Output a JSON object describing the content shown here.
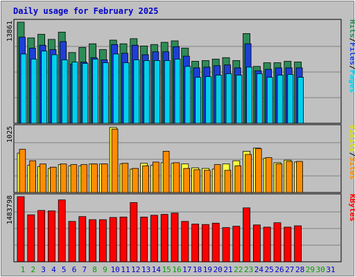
{
  "chart_data": [
    {
      "type": "bar",
      "title": "Daily usage for February 2025",
      "categories": [
        "1",
        "2",
        "3",
        "4",
        "5",
        "6",
        "7",
        "8",
        "9",
        "10",
        "11",
        "12",
        "13",
        "14",
        "15",
        "16",
        "17",
        "18",
        "19",
        "20",
        "21",
        "22",
        "23",
        "24",
        "25",
        "26",
        "27",
        "28",
        "29",
        "30",
        "31"
      ],
      "weekend_days": [
        "1",
        "2",
        "8",
        "9",
        "15",
        "16",
        "22",
        "23",
        "29",
        "30"
      ],
      "ymax_label": "13861",
      "ylim": [
        0,
        13861
      ],
      "series": [
        {
          "name": "Hits",
          "color": "#2e8b57",
          "values": [
            13861,
            11700,
            12200,
            11500,
            12500,
            9700,
            10400,
            10900,
            10100,
            11400,
            10900,
            11600,
            10600,
            10800,
            11100,
            11300,
            10300,
            8500,
            8600,
            8800,
            9000,
            8600,
            12300,
            7800,
            8300,
            8300,
            8500,
            8400,
            0,
            0,
            0
          ]
        },
        {
          "name": "Files",
          "color": "#1e3fd6",
          "values": [
            11800,
            10300,
            10700,
            10100,
            11200,
            8100,
            8400,
            9000,
            8700,
            10800,
            9600,
            10700,
            9400,
            9800,
            9800,
            10500,
            9200,
            7600,
            7700,
            7900,
            8000,
            7600,
            10900,
            7200,
            7400,
            7600,
            7600,
            7600,
            0,
            0,
            0
          ]
        },
        {
          "name": "Pages",
          "color": "#00d0f0",
          "values": [
            9500,
            8800,
            9900,
            9400,
            8700,
            8400,
            8200,
            8800,
            8300,
            9500,
            8300,
            8700,
            8600,
            8600,
            8600,
            8800,
            7800,
            6300,
            6400,
            6600,
            6800,
            6600,
            7700,
            6800,
            6300,
            6600,
            6700,
            6300,
            0,
            0,
            0
          ]
        }
      ],
      "legend": [
        "Pages",
        "Files",
        "Hits"
      ]
    },
    {
      "type": "bar",
      "ymax_label": "1025",
      "ylim": [
        0,
        1025
      ],
      "series": [
        {
          "name": "Visits",
          "color": "#ffff40",
          "values": [
            620,
            430,
            410,
            380,
            440,
            420,
            420,
            450,
            450,
            1025,
            450,
            370,
            460,
            430,
            470,
            460,
            450,
            390,
            380,
            370,
            450,
            500,
            650,
            700,
            540,
            470,
            510,
            480,
            0,
            0,
            0
          ]
        },
        {
          "name": "Sites",
          "color": "#ff8c00",
          "values": [
            680,
            500,
            450,
            400,
            450,
            440,
            440,
            450,
            450,
            1000,
            460,
            380,
            420,
            480,
            650,
            470,
            380,
            360,
            350,
            440,
            350,
            420,
            600,
            690,
            550,
            450,
            490,
            490,
            0,
            0,
            0
          ]
        }
      ],
      "legend": [
        "Sites",
        "Visits"
      ]
    },
    {
      "type": "bar",
      "ymax_label": "1483798",
      "ylim": [
        0,
        1483798
      ],
      "series": [
        {
          "name": "KBytes",
          "color": "#ff0000",
          "values": [
            1483798,
            1070000,
            1170000,
            1160000,
            1410000,
            920000,
            1030000,
            960000,
            960000,
            1010000,
            1020000,
            1350000,
            1020000,
            1060000,
            1080000,
            1110000,
            920000,
            860000,
            850000,
            880000,
            780000,
            810000,
            1230000,
            840000,
            790000,
            890000,
            790000,
            820000,
            0,
            0,
            0
          ]
        }
      ],
      "legend": [
        "KBytes"
      ]
    }
  ],
  "legend_text": {
    "pages": "Pages",
    "files": "Files",
    "hits": "Hits",
    "sites": "Sites",
    "visits": "Visits",
    "kbytes": "KBytes",
    "sep": "/"
  },
  "colors": {
    "plot_bg": "#c0c0c0",
    "frame_bg": "#c0c0c0",
    "weekday_tick": "#0000cc",
    "weekend_tick": "#00a000"
  }
}
